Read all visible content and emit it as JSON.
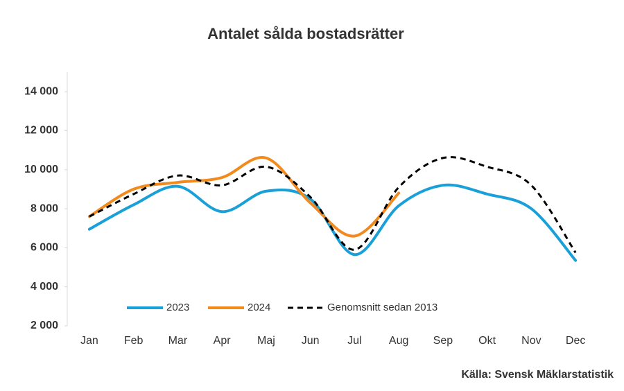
{
  "chart_data": {
    "type": "line",
    "title": "Antalet sålda bostadsrätter",
    "categories": [
      "Jan",
      "Feb",
      "Mar",
      "Apr",
      "Maj",
      "Jun",
      "Jul",
      "Aug",
      "Sep",
      "Okt",
      "Nov",
      "Dec"
    ],
    "series": [
      {
        "name": "2023",
        "color": "#1aa0d8",
        "dashed": false,
        "values": [
          6950,
          8200,
          9150,
          7850,
          8900,
          8500,
          5650,
          8150,
          9200,
          8750,
          8000,
          5350
        ]
      },
      {
        "name": "2024",
        "color": "#f28a1e",
        "dashed": false,
        "values": [
          7600,
          9000,
          9350,
          9600,
          10600,
          8300,
          6600,
          8800,
          null,
          null,
          null,
          null
        ]
      },
      {
        "name": "Genomsnitt sedan 2013",
        "color": "#000000",
        "dashed": true,
        "values": [
          7600,
          8750,
          9700,
          9200,
          10150,
          8600,
          5900,
          9100,
          10600,
          10150,
          9200,
          5750
        ]
      }
    ],
    "ylim": [
      2000,
      15000
    ],
    "yticks": [
      {
        "value": 2000,
        "label": "2 000"
      },
      {
        "value": 4000,
        "label": "4 000"
      },
      {
        "value": 6000,
        "label": "6 000"
      },
      {
        "value": 8000,
        "label": "8 000"
      },
      {
        "value": 10000,
        "label": "10 000"
      },
      {
        "value": 12000,
        "label": "12 000"
      },
      {
        "value": 14000,
        "label": "14 000"
      }
    ],
    "grid": false,
    "source": "Källa: Svensk Mäklarstatistik"
  }
}
